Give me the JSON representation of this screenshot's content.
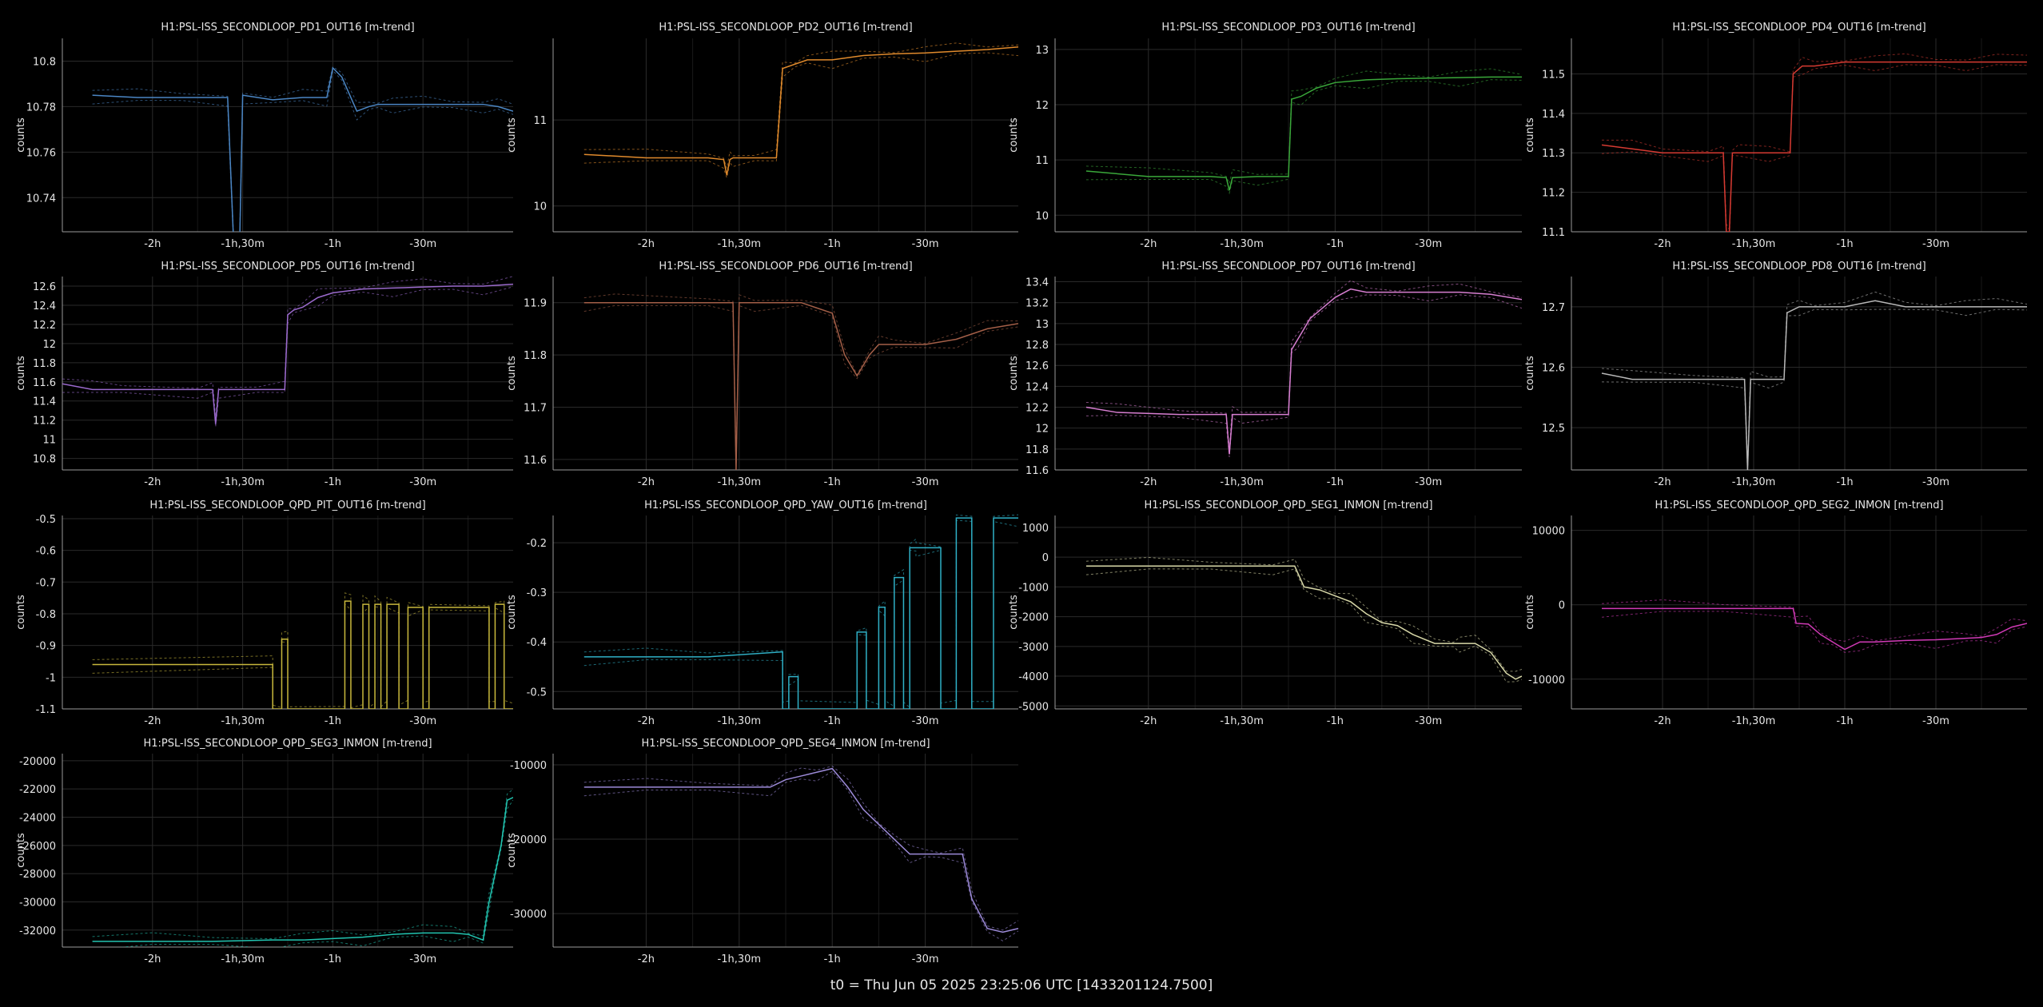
{
  "footer": "t0 = Thu Jun 05 2025 23:25:06 UTC [1433201124.7500]",
  "chart_data": [
    {
      "type": "line",
      "title": "H1:PSL-ISS_SECONDLOOP_PD1_OUT16 [m-trend]",
      "ylabel": "counts",
      "color": "#4b86c4",
      "x_ticks": [
        "-2h",
        "-1h,30m",
        "-1h",
        "-30m"
      ],
      "y_ticks": [
        "10.74",
        "10.76",
        "10.78",
        "10.8"
      ],
      "ylim": [
        10.725,
        10.81
      ],
      "x": [
        -140,
        -125,
        -110,
        -95,
        -93,
        -91,
        -90,
        -80,
        -70,
        -62,
        -60,
        -57,
        -52,
        -48,
        -45,
        -40,
        -30,
        -20,
        -10,
        -5,
        0
      ],
      "values": [
        10.785,
        10.784,
        10.784,
        10.784,
        10.72,
        10.72,
        10.785,
        10.783,
        10.784,
        10.784,
        10.797,
        10.793,
        10.778,
        10.78,
        10.781,
        10.781,
        10.781,
        10.781,
        10.781,
        10.78,
        10.778
      ]
    },
    {
      "type": "line",
      "title": "H1:PSL-ISS_SECONDLOOP_PD2_OUT16 [m-trend]",
      "ylabel": "counts",
      "color": "#e08a2c",
      "x_ticks": [
        "-2h",
        "-1h,30m",
        "-1h",
        "-30m"
      ],
      "y_ticks": [
        "10",
        "11"
      ],
      "ylim": [
        9.7,
        11.95
      ],
      "x": [
        -140,
        -120,
        -100,
        -95,
        -94,
        -93,
        -92,
        -85,
        -78,
        -76,
        -72,
        -68,
        -60,
        -50,
        -40,
        -30,
        -20,
        -10,
        0
      ],
      "values": [
        10.6,
        10.56,
        10.56,
        10.54,
        10.36,
        10.54,
        10.56,
        10.56,
        10.56,
        11.6,
        11.65,
        11.7,
        11.7,
        11.75,
        11.77,
        11.78,
        11.8,
        11.82,
        11.85
      ]
    },
    {
      "type": "line",
      "title": "H1:PSL-ISS_SECONDLOOP_PD3_OUT16 [m-trend]",
      "ylabel": "counts",
      "color": "#3aa83a",
      "x_ticks": [
        "-2h",
        "-1h,30m",
        "-1h",
        "-30m"
      ],
      "y_ticks": [
        "10",
        "11",
        "12",
        "13"
      ],
      "ylim": [
        9.7,
        13.2
      ],
      "x": [
        -140,
        -120,
        -100,
        -95,
        -94,
        -93,
        -85,
        -75,
        -74,
        -71,
        -66,
        -60,
        -50,
        -40,
        -30,
        -20,
        -10,
        0
      ],
      "values": [
        10.8,
        10.7,
        10.7,
        10.68,
        10.45,
        10.68,
        10.7,
        10.7,
        12.1,
        12.15,
        12.3,
        12.4,
        12.45,
        12.47,
        12.48,
        12.49,
        12.5,
        12.5
      ]
    },
    {
      "type": "line",
      "title": "H1:PSL-ISS_SECONDLOOP_PD4_OUT16 [m-trend]",
      "ylabel": "counts",
      "color": "#d63a32",
      "x_ticks": [
        "-2h",
        "-1h,30m",
        "-1h",
        "-30m"
      ],
      "y_ticks": [
        "11.1",
        "11.2",
        "11.3",
        "11.4",
        "11.5"
      ],
      "ylim": [
        11.1,
        11.59
      ],
      "x": [
        -140,
        -130,
        -120,
        -105,
        -100,
        -99,
        -98,
        -97,
        -95,
        -85,
        -78,
        -77,
        -74,
        -70,
        -60,
        -50,
        -40,
        -30,
        -20,
        -10,
        0
      ],
      "values": [
        11.32,
        11.31,
        11.3,
        11.3,
        11.3,
        11.1,
        11.1,
        11.3,
        11.3,
        11.3,
        11.3,
        11.5,
        11.52,
        11.52,
        11.53,
        11.53,
        11.53,
        11.53,
        11.53,
        11.53,
        11.53
      ]
    },
    {
      "type": "line",
      "title": "H1:PSL-ISS_SECONDLOOP_PD5_OUT16 [m-trend]",
      "ylabel": "counts",
      "color": "#9b6acd",
      "x_ticks": [
        "-2h",
        "-1h,30m",
        "-1h",
        "-30m"
      ],
      "y_ticks": [
        "10.8",
        "11",
        "11.2",
        "11.4",
        "11.6",
        "11.8",
        "12",
        "12.2",
        "12.4",
        "12.6"
      ],
      "ylim": [
        10.68,
        12.7
      ],
      "x": [
        -150,
        -140,
        -130,
        -105,
        -100,
        -99,
        -98,
        -85,
        -76,
        -75,
        -73,
        -70,
        -65,
        -60,
        -50,
        -40,
        -30,
        -20,
        -10,
        0
      ],
      "values": [
        11.58,
        11.52,
        11.52,
        11.52,
        11.52,
        11.16,
        11.52,
        11.52,
        11.52,
        12.3,
        12.35,
        12.38,
        12.48,
        12.53,
        12.57,
        12.58,
        12.59,
        12.6,
        12.6,
        12.62
      ]
    },
    {
      "type": "line",
      "title": "H1:PSL-ISS_SECONDLOOP_PD6_OUT16 [m-trend]",
      "ylabel": "counts",
      "color": "#a45f48",
      "x_ticks": [
        "-2h",
        "-1h,30m",
        "-1h",
        "-30m"
      ],
      "y_ticks": [
        "11.6",
        "11.7",
        "11.8",
        "11.9"
      ],
      "ylim": [
        11.58,
        11.95
      ],
      "x": [
        -140,
        -130,
        -100,
        -92,
        -91,
        -90,
        -85,
        -70,
        -60,
        -56,
        -52,
        -48,
        -45,
        -40,
        -30,
        -20,
        -10,
        0
      ],
      "values": [
        11.9,
        11.9,
        11.9,
        11.9,
        11.58,
        11.9,
        11.9,
        11.9,
        11.88,
        11.8,
        11.76,
        11.8,
        11.82,
        11.82,
        11.82,
        11.83,
        11.85,
        11.86
      ]
    },
    {
      "type": "line",
      "title": "H1:PSL-ISS_SECONDLOOP_PD7_OUT16 [m-trend]",
      "ylabel": "counts",
      "color": "#d77ed1",
      "x_ticks": [
        "-2h",
        "-1h,30m",
        "-1h",
        "-30m"
      ],
      "y_ticks": [
        "11.6",
        "11.8",
        "12",
        "12.2",
        "12.4",
        "12.6",
        "12.8",
        "13",
        "13.2",
        "13.4"
      ],
      "ylim": [
        11.6,
        13.45
      ],
      "x": [
        -140,
        -130,
        -110,
        -95,
        -94,
        -93,
        -90,
        -75,
        -74,
        -72,
        -68,
        -60,
        -55,
        -50,
        -40,
        -30,
        -20,
        -10,
        0
      ],
      "values": [
        12.2,
        12.15,
        12.13,
        12.13,
        11.75,
        12.13,
        12.13,
        12.13,
        12.75,
        12.85,
        13.05,
        13.25,
        13.33,
        13.3,
        13.3,
        13.3,
        13.3,
        13.28,
        13.23
      ]
    },
    {
      "type": "line",
      "title": "H1:PSL-ISS_SECONDLOOP_PD8_OUT16 [m-trend]",
      "ylabel": "counts",
      "color": "#b8b8b8",
      "x_ticks": [
        "-2h",
        "-1h,30m",
        "-1h",
        "-30m"
      ],
      "y_ticks": [
        "12.5",
        "12.6",
        "12.7"
      ],
      "ylim": [
        12.43,
        12.75
      ],
      "x": [
        -140,
        -130,
        -110,
        -93,
        -92,
        -91,
        -85,
        -80,
        -79,
        -75,
        -70,
        -60,
        -50,
        -40,
        -30,
        -20,
        -10,
        0
      ],
      "values": [
        12.59,
        12.58,
        12.58,
        12.58,
        12.43,
        12.58,
        12.58,
        12.58,
        12.69,
        12.7,
        12.7,
        12.7,
        12.71,
        12.7,
        12.7,
        12.7,
        12.7,
        12.7
      ]
    },
    {
      "type": "line",
      "title": "H1:PSL-ISS_SECONDLOOP_QPD_PIT_OUT16 [m-trend]",
      "ylabel": "counts",
      "color": "#c8b83c",
      "x_ticks": [
        "-2h",
        "-1h,30m",
        "-1h",
        "-30m"
      ],
      "y_ticks": [
        "-1.1",
        "-1",
        "-0.9",
        "-0.8",
        "-0.7",
        "-0.6",
        "-0.5"
      ],
      "ylim": [
        -1.1,
        -0.49
      ],
      "x": [
        -140,
        -80,
        -80,
        -77,
        -77,
        -75,
        -75,
        -56,
        -56,
        -54,
        -54,
        -50,
        -50,
        -48,
        -48,
        -46,
        -46,
        -44,
        -44,
        -42,
        -42,
        -38,
        -38,
        -35,
        -35,
        -30,
        -30,
        -28,
        -28,
        -8,
        -8,
        -6,
        -6,
        -3,
        -3,
        0
      ],
      "values": [
        -0.96,
        -0.96,
        -1.1,
        -1.1,
        -0.88,
        -0.88,
        -1.1,
        -1.1,
        -0.76,
        -0.76,
        -1.1,
        -1.1,
        -0.77,
        -0.77,
        -1.1,
        -1.1,
        -0.77,
        -0.77,
        -1.1,
        -1.1,
        -0.77,
        -0.77,
        -1.1,
        -1.1,
        -0.78,
        -0.78,
        -1.1,
        -1.1,
        -0.78,
        -0.78,
        -1.1,
        -1.1,
        -0.77,
        -0.77,
        -1.1,
        -1.1
      ]
    },
    {
      "type": "line",
      "title": "H1:PSL-ISS_SECONDLOOP_QPD_YAW_OUT16 [m-trend]",
      "ylabel": "counts",
      "color": "#2fb0c6",
      "x_ticks": [
        "-2h",
        "-1h,30m",
        "-1h",
        "-30m"
      ],
      "y_ticks": [
        "-0.5",
        "-0.4",
        "-0.3",
        "-0.2"
      ],
      "ylim": [
        -0.535,
        -0.145
      ],
      "x": [
        -140,
        -120,
        -100,
        -76,
        -76,
        -74,
        -74,
        -71,
        -71,
        -52,
        -52,
        -49,
        -49,
        -45,
        -45,
        -43,
        -43,
        -40,
        -40,
        -37,
        -37,
        -35,
        -35,
        -33,
        -33,
        -25,
        -25,
        -20,
        -20,
        -15,
        -15,
        -8,
        -8,
        0
      ],
      "values": [
        -0.43,
        -0.43,
        -0.43,
        -0.42,
        -0.535,
        -0.535,
        -0.47,
        -0.47,
        -0.535,
        -0.535,
        -0.38,
        -0.38,
        -0.535,
        -0.535,
        -0.33,
        -0.33,
        -0.535,
        -0.535,
        -0.27,
        -0.27,
        -0.535,
        -0.535,
        -0.21,
        -0.21,
        -0.21,
        -0.21,
        -0.535,
        -0.535,
        -0.15,
        -0.15,
        -0.535,
        -0.535,
        -0.15,
        -0.15
      ]
    },
    {
      "type": "line",
      "title": "H1:PSL-ISS_SECONDLOOP_QPD_SEG1_INMON [m-trend]",
      "ylabel": "counts",
      "color": "#d8d8a8",
      "x_ticks": [
        "-2h",
        "-1h,30m",
        "-1h",
        "-30m"
      ],
      "y_ticks": [
        "-5000",
        "-4000",
        "-3000",
        "-2000",
        "-1000",
        "0",
        "1000"
      ],
      "ylim": [
        -5100,
        1400
      ],
      "x": [
        -140,
        -120,
        -100,
        -80,
        -73,
        -70,
        -65,
        -60,
        -55,
        -50,
        -45,
        -40,
        -35,
        -28,
        -22,
        -20,
        -15,
        -10,
        -5,
        -2,
        0
      ],
      "values": [
        -300,
        -300,
        -300,
        -300,
        -300,
        -1000,
        -1100,
        -1300,
        -1500,
        -1900,
        -2200,
        -2300,
        -2600,
        -2900,
        -2900,
        -2900,
        -2900,
        -3200,
        -3900,
        -4100,
        -4000
      ]
    },
    {
      "type": "line",
      "title": "H1:PSL-ISS_SECONDLOOP_QPD_SEG2_INMON [m-trend]",
      "ylabel": "counts",
      "color": "#d03ab6",
      "x_ticks": [
        "-2h",
        "-1h,30m",
        "-1h",
        "-30m"
      ],
      "y_ticks": [
        "-10000",
        "0",
        "10000"
      ],
      "ylim": [
        -14000,
        12000
      ],
      "x": [
        -140,
        -120,
        -100,
        -77,
        -76,
        -72,
        -68,
        -64,
        -60,
        -55,
        -50,
        -40,
        -30,
        -20,
        -15,
        -10,
        -5,
        0
      ],
      "values": [
        -500,
        -500,
        -500,
        -500,
        -2500,
        -2600,
        -4000,
        -5000,
        -6000,
        -5000,
        -5000,
        -4800,
        -4700,
        -4500,
        -4400,
        -4000,
        -3000,
        -2500
      ]
    },
    {
      "type": "line",
      "title": "H1:PSL-ISS_SECONDLOOP_QPD_SEG3_INMON [m-trend]",
      "ylabel": "counts",
      "color": "#22c4b0",
      "x_ticks": [
        "-2h",
        "-1h,30m",
        "-1h",
        "-30m"
      ],
      "y_ticks": [
        "-32000",
        "-30000",
        "-28000",
        "-26000",
        "-24000",
        "-22000",
        "-20000"
      ],
      "ylim": [
        -33200,
        -19500
      ],
      "x": [
        -140,
        -120,
        -100,
        -80,
        -70,
        -60,
        -50,
        -40,
        -30,
        -20,
        -15,
        -10,
        -8,
        -6,
        -4,
        -2,
        0
      ],
      "values": [
        -32800,
        -32800,
        -32800,
        -32700,
        -32700,
        -32600,
        -32500,
        -32300,
        -32200,
        -32200,
        -32300,
        -32700,
        -30000,
        -28000,
        -26000,
        -22800,
        -22600
      ]
    },
    {
      "type": "line",
      "title": "H1:PSL-ISS_SECONDLOOP_QPD_SEG4_INMON [m-trend]",
      "ylabel": "counts",
      "color": "#9c8ad8",
      "x_ticks": [
        "-2h",
        "-1h,30m",
        "-1h",
        "-30m"
      ],
      "y_ticks": [
        "-30000",
        "-20000",
        "-10000"
      ],
      "ylim": [
        -34500,
        -8500
      ],
      "x": [
        -140,
        -120,
        -100,
        -80,
        -75,
        -70,
        -65,
        -60,
        -55,
        -50,
        -45,
        -40,
        -35,
        -30,
        -25,
        -18,
        -15,
        -10,
        -5,
        0
      ],
      "values": [
        -13000,
        -13000,
        -13000,
        -13000,
        -12000,
        -11500,
        -11000,
        -10500,
        -13000,
        -16000,
        -18000,
        -20000,
        -22000,
        -22000,
        -22000,
        -22000,
        -28000,
        -32000,
        -32500,
        -32000
      ]
    }
  ]
}
